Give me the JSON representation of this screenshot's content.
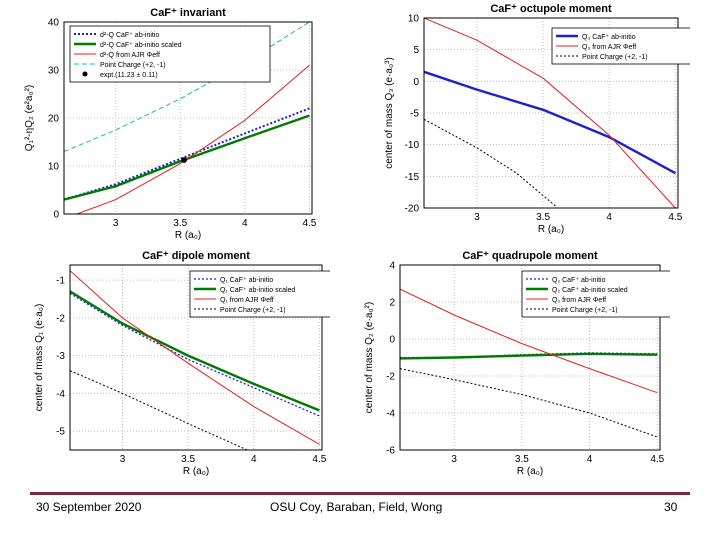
{
  "footer": {
    "date": "30 September 2020",
    "authors": "OSU Coy, Baraban, Field, Wong",
    "page": "30"
  },
  "chart_data": [
    {
      "type": "line",
      "title": "CaF⁺ invariant",
      "xlabel": "R (a₀)",
      "ylabel": "Q₁²-ηQ₂ (e²a₀²)",
      "xlim": [
        2.6,
        4.52
      ],
      "ylim": [
        0,
        40
      ],
      "xticks": [
        3,
        3.5,
        4,
        4.5
      ],
      "yticks": [
        0,
        10,
        20,
        30,
        40
      ],
      "legend_position": "top-left",
      "series": [
        {
          "name": "d²-Q CaF⁺ ab-initio",
          "color": "#1f1fd0",
          "dash": "2,2",
          "width": 2,
          "x": [
            2.6,
            3.0,
            3.5,
            4.0,
            4.5
          ],
          "y": [
            3.0,
            6.2,
            11.5,
            16.8,
            22.0
          ]
        },
        {
          "name": "d²-Q CaF⁺ ab-initio scaled",
          "color": "#007a00",
          "dash": "",
          "width": 2.4,
          "x": [
            2.6,
            3.0,
            3.5,
            4.0,
            4.5
          ],
          "y": [
            3.0,
            5.8,
            11.0,
            15.8,
            20.5
          ]
        },
        {
          "name": "d²-Q from AJR Φeff",
          "color": "#e02020",
          "dash": "",
          "width": 1,
          "x": [
            2.6,
            3.0,
            3.5,
            4.0,
            4.5
          ],
          "y": [
            -1.0,
            3.0,
            10.5,
            19.5,
            31.0
          ]
        },
        {
          "name": "Point Charge (+2, -1)",
          "color": "#20b0c8",
          "dash": "5,3",
          "width": 1,
          "x": [
            2.6,
            3.0,
            3.5,
            4.0,
            4.5
          ],
          "y": [
            13.0,
            17.5,
            24.0,
            31.5,
            40.0
          ]
        }
      ],
      "points": [
        {
          "name": "expt.(11.23 ± 0.11)",
          "x": 3.53,
          "y": 11.23
        }
      ]
    },
    {
      "type": "line",
      "title": "CaF⁺ octupole moment",
      "xlabel": "R (a₀)",
      "ylabel": "center of mass Q₃ (e·a₀³)",
      "xlim": [
        2.6,
        4.52
      ],
      "ylim": [
        -20,
        10
      ],
      "xticks": [
        3,
        3.5,
        4,
        4.5
      ],
      "yticks": [
        -20,
        -15,
        -10,
        -5,
        0,
        5,
        10
      ],
      "legend_position": "top-right",
      "series": [
        {
          "name": "Q₃ CaF⁺ ab-initio",
          "color": "#1f1fd0",
          "dash": "",
          "width": 2.4,
          "x": [
            2.6,
            3.0,
            3.5,
            4.0,
            4.5
          ],
          "y": [
            1.5,
            -1.3,
            -4.5,
            -8.8,
            -14.5
          ]
        },
        {
          "name": "Q₃ from AJR Φeff",
          "color": "#e02020",
          "dash": "",
          "width": 1,
          "x": [
            2.6,
            3.0,
            3.5,
            4.0,
            4.5
          ],
          "y": [
            10.0,
            6.5,
            0.5,
            -8.5,
            -20.0
          ]
        },
        {
          "name": "Point Charge (+2, -1)",
          "color": "#000000",
          "dash": "2,2",
          "width": 1,
          "x": [
            2.6,
            3.0,
            3.3,
            3.6
          ],
          "y": [
            -6.0,
            -10.5,
            -14.5,
            -19.8
          ]
        }
      ],
      "points": []
    },
    {
      "type": "line",
      "title": "CaF⁺ dipole moment",
      "xlabel": "R (a₀)",
      "ylabel": "center of mass Q₁ (e·a₀)",
      "xlim": [
        2.6,
        4.52
      ],
      "ylim": [
        -5.5,
        -0.6
      ],
      "xticks": [
        3,
        3.5,
        4,
        4.5
      ],
      "yticks": [
        -5,
        -4,
        -3,
        -2,
        -1
      ],
      "legend_position": "top-right",
      "series": [
        {
          "name": "Q₁ CaF⁺ ab-initio",
          "color": "#1f1fd0",
          "dash": "2,2",
          "width": 1.3,
          "x": [
            2.6,
            3.0,
            3.5,
            4.0,
            4.5
          ],
          "y": [
            -1.35,
            -2.2,
            -3.1,
            -3.85,
            -4.6
          ]
        },
        {
          "name": "Q₁ CaF⁺ ab-initio scaled",
          "color": "#007a00",
          "dash": "",
          "width": 2.4,
          "x": [
            2.6,
            3.0,
            3.5,
            4.0,
            4.5
          ],
          "y": [
            -1.3,
            -2.15,
            -3.0,
            -3.75,
            -4.45
          ]
        },
        {
          "name": "Q₁ from AJR Φeff",
          "color": "#e02020",
          "dash": "",
          "width": 1,
          "x": [
            2.6,
            3.0,
            3.5,
            4.0,
            4.5
          ],
          "y": [
            -0.75,
            -2.0,
            -3.2,
            -4.35,
            -5.35
          ]
        },
        {
          "name": "Point Charge (+2, -1)",
          "color": "#000000",
          "dash": "2,2",
          "width": 1,
          "x": [
            2.6,
            3.0,
            3.5,
            3.95
          ],
          "y": [
            -3.4,
            -4.0,
            -4.8,
            -5.5
          ]
        }
      ],
      "points": []
    },
    {
      "type": "line",
      "title": "CaF⁺ quadrupole moment",
      "xlabel": "R (a₀)",
      "ylabel": "center of mass Q₂ (e·a₀²)",
      "xlim": [
        2.6,
        4.52
      ],
      "ylim": [
        -6,
        4
      ],
      "xticks": [
        3,
        3.5,
        4,
        4.5
      ],
      "yticks": [
        -6,
        -4,
        -2,
        0,
        2,
        4
      ],
      "legend_position": "top-right",
      "series": [
        {
          "name": "Q₂ CaF⁺ ab-initio",
          "color": "#1f1fd0",
          "dash": "2,2",
          "width": 1.3,
          "x": [
            2.6,
            3.0,
            3.5,
            4.0,
            4.5
          ],
          "y": [
            -1.0,
            -1.0,
            -0.85,
            -0.75,
            -0.8
          ]
        },
        {
          "name": "Q₂ CaF⁺ ab-initio scaled",
          "color": "#007a00",
          "dash": "",
          "width": 2.4,
          "x": [
            2.6,
            3.0,
            3.5,
            4.0,
            4.5
          ],
          "y": [
            -1.05,
            -1.0,
            -0.9,
            -0.8,
            -0.85
          ]
        },
        {
          "name": "Q₂ from AJR Φeff",
          "color": "#e02020",
          "dash": "",
          "width": 1,
          "x": [
            2.6,
            3.0,
            3.5,
            4.0,
            4.5
          ],
          "y": [
            2.7,
            1.3,
            -0.25,
            -1.6,
            -2.9
          ]
        },
        {
          "name": "Point Charge (+2, -1)",
          "color": "#000000",
          "dash": "2,2",
          "width": 1,
          "x": [
            2.6,
            3.0,
            3.5,
            4.0,
            4.5
          ],
          "y": [
            -1.6,
            -2.2,
            -3.0,
            -4.0,
            -5.3
          ]
        }
      ],
      "points": []
    }
  ]
}
